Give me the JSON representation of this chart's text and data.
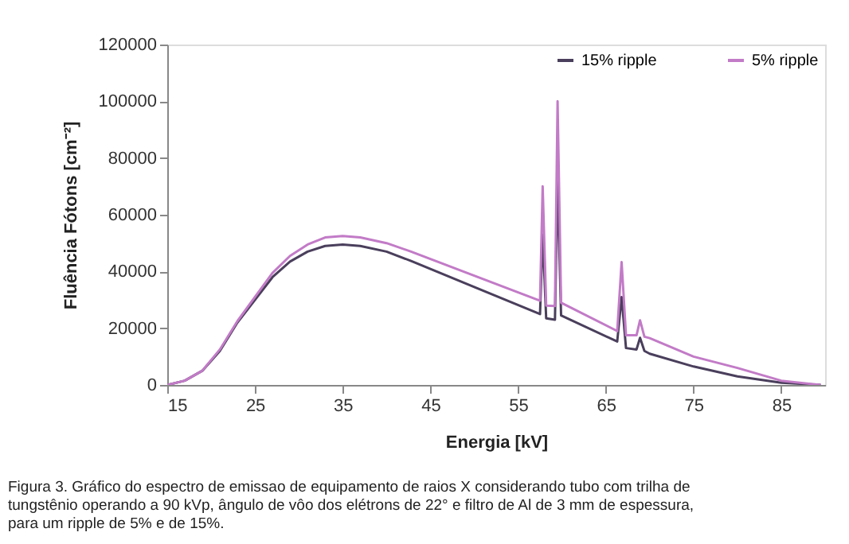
{
  "chart_data": {
    "type": "line",
    "xlabel": "Energia [kV]",
    "ylabel": "Fluência Fótons [cm⁻²]",
    "xlim": [
      15,
      90
    ],
    "xticks": [
      15,
      25,
      35,
      45,
      55,
      65,
      75,
      85
    ],
    "ylim": [
      0,
      120000
    ],
    "yticks": [
      0,
      20000,
      40000,
      60000,
      80000,
      100000,
      120000
    ],
    "grid": false,
    "legend": "top right",
    "marker": "none",
    "line_style": "solid",
    "series": [
      {
        "name": "15% ripple",
        "color": "#4a3f5c",
        "x": [
          15,
          17,
          19,
          21,
          23,
          25,
          27,
          29,
          31,
          33,
          35,
          37,
          40,
          42.8,
          50,
          57.5,
          57.8,
          58.2,
          59.2,
          59.5,
          59.9,
          66.3,
          66.8,
          67.3,
          68.5,
          68.9,
          69.4,
          70,
          75,
          80,
          85,
          89.5
        ],
        "values": [
          0,
          1500,
          5000,
          12000,
          22000,
          30000,
          38000,
          43500,
          47000,
          49000,
          49500,
          49000,
          47000,
          43700,
          34500,
          25000,
          53000,
          23500,
          23000,
          71700,
          24500,
          15300,
          31000,
          13000,
          12500,
          16600,
          12000,
          11000,
          6500,
          3000,
          800,
          0
        ]
      },
      {
        "name": "5% ripple",
        "color": "#c27bc7",
        "x": [
          15,
          17,
          19,
          21,
          23,
          25,
          27,
          29,
          31,
          33,
          35,
          37,
          40,
          42.8,
          50,
          57.5,
          57.8,
          58.2,
          59.2,
          59.5,
          59.9,
          66.3,
          66.8,
          67.3,
          68.5,
          68.9,
          69.4,
          70,
          75,
          80,
          85,
          89.5
        ],
        "values": [
          0,
          1500,
          5000,
          12500,
          22500,
          31000,
          39500,
          45500,
          49500,
          52000,
          52500,
          52000,
          50000,
          47000,
          38500,
          29700,
          70000,
          28000,
          27800,
          100000,
          29000,
          19000,
          43300,
          17500,
          17500,
          22800,
          17000,
          16500,
          10000,
          6000,
          1500,
          0
        ]
      }
    ],
    "annotations": [
      "Figura 3. Gráfico do espectro de emissao de equipamento de raios X considerando tubo com trilha de tungstênio operando a 90 kVp, ângulo de vôo dos elétrons de 22° e filtro de Al de 3 mm de espessura, para um ripple de 5% e de 15%."
    ]
  }
}
